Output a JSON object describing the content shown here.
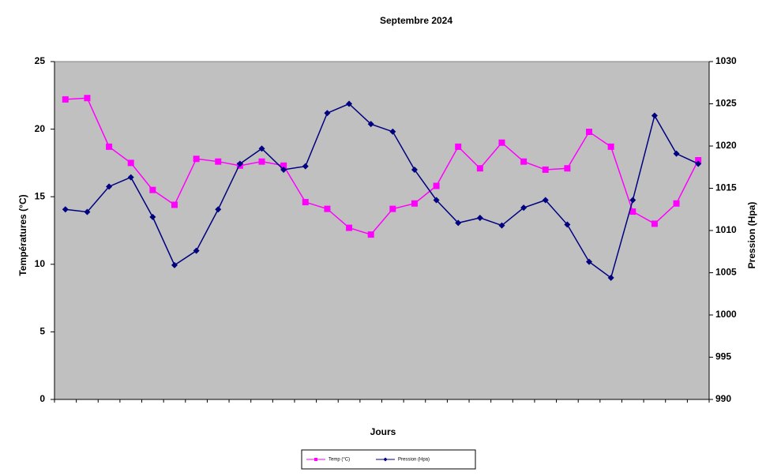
{
  "chart_data": {
    "type": "line",
    "title": "Septembre 2024",
    "x_label": "Jours",
    "y_label": "Températures (°C)",
    "y2_label": "Pression (Hpa)",
    "categories": [
      null,
      null,
      null,
      null,
      null,
      null,
      null,
      null,
      null,
      null,
      null,
      null,
      null,
      null,
      null,
      null,
      null,
      null,
      null,
      null,
      null,
      null,
      null,
      null,
      null,
      null,
      null,
      null,
      null,
      null
    ],
    "series": [
      {
        "name": "Temp (°C)",
        "color": "#ff00ff",
        "marker": "square",
        "values": [
          22.2,
          22.3,
          18.7,
          17.5,
          15.5,
          14.4,
          17.8,
          17.6,
          17.3,
          17.6,
          17.3,
          14.6,
          14.1,
          12.7,
          12.2,
          14.1,
          14.5,
          15.8,
          18.7,
          17.1,
          19.0,
          17.6,
          17.0,
          17.1,
          19.8,
          18.7,
          13.9,
          13.0,
          14.5,
          17.7
        ]
      },
      {
        "name": "Pression (Hpa)",
        "color": "#000080",
        "marker": "diamond",
        "axis": "y2",
        "values": [
          1012.5,
          1012.2,
          1015.2,
          1016.3,
          1011.6,
          1005.9,
          1007.6,
          1012.5,
          1017.9,
          1019.7,
          1017.2,
          1017.6,
          1023.9,
          1025.0,
          1022.6,
          1021.7,
          1017.2,
          1013.6,
          1010.9,
          1011.5,
          1010.6,
          1012.7,
          1013.6,
          1010.7,
          1006.3,
          1004.4,
          1013.6,
          1023.6,
          1019.1,
          1017.9
        ]
      }
    ],
    "ylim": [
      0,
      25
    ],
    "yticks": [
      0,
      5,
      10,
      15,
      20,
      25
    ],
    "y2lim": [
      990,
      1030
    ],
    "y2ticks": [
      990,
      995,
      1000,
      1005,
      1010,
      1015,
      1020,
      1025,
      1030
    ],
    "plot_background": "#c0c0c0",
    "legend": "bottom"
  }
}
